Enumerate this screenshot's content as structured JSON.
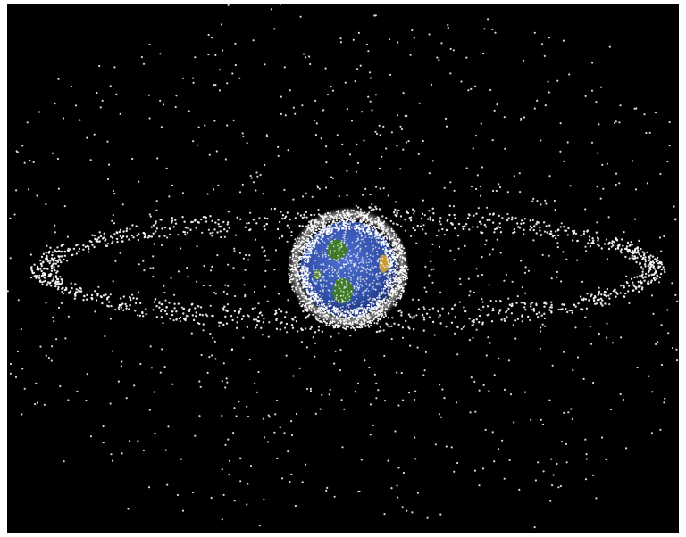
{
  "scene": {
    "subject": "earth",
    "background_color": "#000000",
    "frame_color": "#ffffff",
    "debris_color": "#ffffff",
    "ocean_color": "#2f4fa8",
    "land_colors": [
      "#3f7a2a",
      "#c79a3a",
      "#5a8a3a"
    ]
  }
}
